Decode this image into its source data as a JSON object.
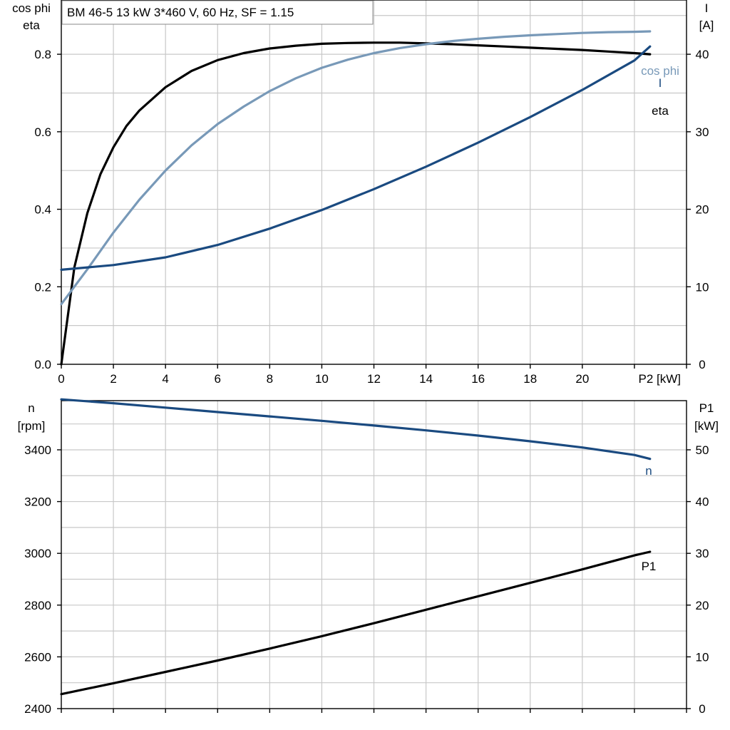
{
  "chart_data": [
    {
      "type": "line",
      "title": "BM 46-5   13 kW   3*460 V, 60 Hz, SF = 1.15",
      "xlabel": "P2 [kW]",
      "x_ticks": [
        0,
        2,
        4,
        6,
        8,
        10,
        12,
        14,
        16,
        18,
        20
      ],
      "xlim": [
        0,
        24
      ],
      "ylabel_left": [
        "cos phi",
        "eta"
      ],
      "ylim_left": [
        0,
        0.94
      ],
      "y_ticks_left": [
        "0.0",
        "0.2",
        "0.4",
        "0.6",
        "0.8"
      ],
      "ylabel_right": [
        "I",
        "[A]"
      ],
      "ylim_right": [
        0,
        47
      ],
      "y_ticks_right": [
        "0",
        "10",
        "20",
        "30",
        "40"
      ],
      "grid": true,
      "series": [
        {
          "name": "eta",
          "axis": "left",
          "color": "#000000",
          "x": [
            0,
            0.5,
            1,
            1.5,
            2,
            2.5,
            3,
            4,
            5,
            6,
            7,
            8,
            9,
            10,
            11,
            12,
            13,
            14,
            15,
            16,
            17,
            18,
            19,
            20,
            21,
            22,
            22.6
          ],
          "y": [
            0,
            0.25,
            0.39,
            0.49,
            0.56,
            0.615,
            0.655,
            0.715,
            0.757,
            0.785,
            0.803,
            0.815,
            0.822,
            0.827,
            0.829,
            0.83,
            0.83,
            0.828,
            0.826,
            0.823,
            0.82,
            0.817,
            0.814,
            0.811,
            0.807,
            0.803,
            0.8
          ]
        },
        {
          "name": "cos phi",
          "axis": "left",
          "color": "#7899b8",
          "x": [
            0,
            1,
            2,
            3,
            4,
            5,
            6,
            7,
            8,
            9,
            10,
            11,
            12,
            13,
            14,
            15,
            16,
            17,
            18,
            19,
            20,
            21,
            22,
            22.6
          ],
          "y": [
            0.155,
            0.245,
            0.34,
            0.425,
            0.5,
            0.565,
            0.62,
            0.665,
            0.705,
            0.738,
            0.765,
            0.786,
            0.803,
            0.816,
            0.826,
            0.834,
            0.84,
            0.845,
            0.849,
            0.852,
            0.855,
            0.857,
            0.858,
            0.859
          ]
        },
        {
          "name": "I",
          "axis": "right",
          "color": "#1a4a80",
          "x": [
            0,
            2,
            4,
            6,
            8,
            10,
            12,
            14,
            16,
            18,
            20,
            22,
            22.6
          ],
          "y": [
            12.2,
            12.8,
            13.8,
            15.4,
            17.5,
            19.9,
            22.6,
            25.5,
            28.6,
            31.9,
            35.4,
            39.2,
            41
          ]
        }
      ]
    },
    {
      "type": "line",
      "xlim": [
        0,
        24
      ],
      "ylabel_left": [
        "n",
        "[rpm]"
      ],
      "ylim_left": [
        2400,
        3590
      ],
      "y_ticks_left": [
        "2400",
        "2600",
        "2800",
        "3000",
        "3200",
        "3400"
      ],
      "ylabel_right": [
        "P1",
        "[kW]"
      ],
      "ylim_right": [
        0,
        59.5
      ],
      "y_ticks_right": [
        "0",
        "10",
        "20",
        "30",
        "40",
        "50"
      ],
      "grid": true,
      "series": [
        {
          "name": "n",
          "axis": "left",
          "color": "#1a4a80",
          "x": [
            0,
            2,
            4,
            6,
            8,
            10,
            12,
            14,
            16,
            18,
            20,
            22,
            22.6
          ],
          "y": [
            3595,
            3580,
            3563,
            3546,
            3529,
            3512,
            3494,
            3475,
            3455,
            3433,
            3409,
            3380,
            3365
          ]
        },
        {
          "name": "P1",
          "axis": "right",
          "color": "#000000",
          "x": [
            0,
            2,
            4,
            6,
            8,
            10,
            12,
            14,
            16,
            18,
            20,
            22,
            22.6
          ],
          "y": [
            2.8,
            4.9,
            7.1,
            9.3,
            11.6,
            14,
            16.5,
            19.1,
            21.7,
            24.3,
            26.9,
            29.6,
            30.3
          ]
        }
      ]
    }
  ]
}
